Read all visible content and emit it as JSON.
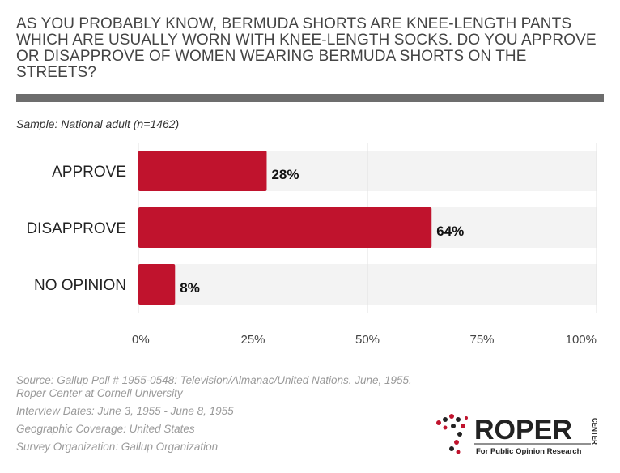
{
  "question": "AS YOU PROBABLY KNOW, BERMUDA SHORTS ARE KNEE-LENGTH PANTS WHICH ARE USUALLY WORN WITH KNEE-LENGTH SOCKS. DO YOU APPROVE OR DISAPPROVE OF WOMEN WEARING BERMUDA SHORTS ON THE STREETS?",
  "sample": "Sample: National adult (n=1462)",
  "chart_data": {
    "type": "bar",
    "orientation": "horizontal",
    "categories": [
      "APPROVE",
      "DISAPPROVE",
      "NO OPINION"
    ],
    "values": [
      28,
      64,
      8
    ],
    "value_labels": [
      "28%",
      "64%",
      "8%"
    ],
    "xlim": [
      0,
      100
    ],
    "xticks": [
      "0%",
      "25%",
      "50%",
      "75%",
      "100%"
    ],
    "grid": true,
    "bar_color": "#c0132d",
    "band_color": "#f3f3f3"
  },
  "footer": {
    "source_line1": "Source: Gallup Poll # 1955-0548: Television/Almanac/United Nations. June, 1955.",
    "source_line2": "Roper Center at Cornell University",
    "dates": "Interview Dates: June 3, 1955 - June 8, 1955",
    "coverage": "Geographic Coverage: United States",
    "organization": "Survey Organization: Gallup Organization"
  },
  "logo": {
    "name": "ROPER",
    "side": "CENTER",
    "tagline": "For Public Opinion Research"
  }
}
